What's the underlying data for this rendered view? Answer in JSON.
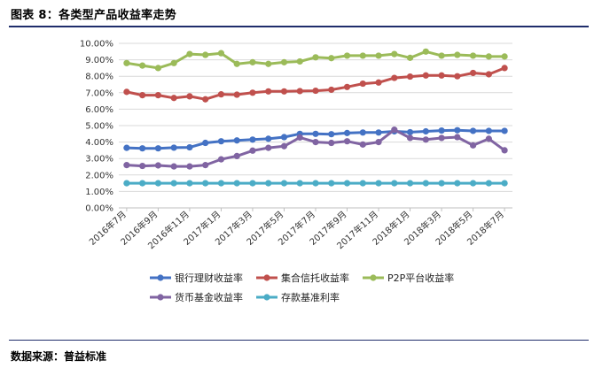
{
  "figure_title": "图表 8：各类型产品收益率走势",
  "source_text": "数据来源：普益标准",
  "chart_data": {
    "type": "line",
    "title": "",
    "xlabel": "",
    "ylabel": "",
    "ylim": [
      0,
      10
    ],
    "y_ticks": [
      "0.00%",
      "1.00%",
      "2.00%",
      "3.00%",
      "4.00%",
      "5.00%",
      "6.00%",
      "7.00%",
      "8.00%",
      "9.00%",
      "10.00%"
    ],
    "x_tick_labels": [
      "2016年7月",
      "2016年9月",
      "2016年11月",
      "2017年1月",
      "2017年3月",
      "2017年5月",
      "2017年7月",
      "2017年9月",
      "2017年11月",
      "2018年1月",
      "2018年3月",
      "2018年5月",
      "2018年7月"
    ],
    "x": [
      "2016-07",
      "2016-08",
      "2016-09",
      "2016-10",
      "2016-11",
      "2016-12",
      "2017-01",
      "2017-02",
      "2017-03",
      "2017-04",
      "2017-05",
      "2017-06",
      "2017-07",
      "2017-08",
      "2017-09",
      "2017-10",
      "2017-11",
      "2017-12",
      "2018-01",
      "2018-02",
      "2018-03",
      "2018-04",
      "2018-05",
      "2018-06",
      "2018-07"
    ],
    "legend_position": "bottom",
    "series": [
      {
        "name": "银行理财收益率",
        "color": "#4472c4",
        "values": [
          3.65,
          3.62,
          3.62,
          3.66,
          3.68,
          3.95,
          4.05,
          4.1,
          4.15,
          4.2,
          4.3,
          4.5,
          4.5,
          4.48,
          4.55,
          4.58,
          4.58,
          4.65,
          4.6,
          4.65,
          4.7,
          4.72,
          4.68,
          4.68,
          4.68
        ]
      },
      {
        "name": "集合信托收益率",
        "color": "#c0504d",
        "values": [
          7.05,
          6.85,
          6.85,
          6.68,
          6.78,
          6.6,
          6.9,
          6.88,
          7.0,
          7.08,
          7.08,
          7.1,
          7.12,
          7.18,
          7.35,
          7.55,
          7.62,
          7.9,
          7.98,
          8.05,
          8.05,
          8.0,
          8.2,
          8.12,
          8.5
        ]
      },
      {
        "name": "P2P平台收益率",
        "color": "#9bbb59",
        "values": [
          8.8,
          8.65,
          8.5,
          8.8,
          9.35,
          9.3,
          9.4,
          8.75,
          8.85,
          8.75,
          8.85,
          8.9,
          9.15,
          9.1,
          9.25,
          9.25,
          9.25,
          9.35,
          9.12,
          9.5,
          9.25,
          9.3,
          9.25,
          9.2,
          9.2
        ]
      },
      {
        "name": "货币基金收益率",
        "color": "#8064a2",
        "values": [
          2.6,
          2.55,
          2.58,
          2.52,
          2.52,
          2.6,
          2.95,
          3.15,
          3.48,
          3.65,
          3.75,
          4.28,
          4.0,
          3.95,
          4.05,
          3.85,
          4.0,
          4.75,
          4.25,
          4.15,
          4.25,
          4.3,
          3.8,
          4.2,
          3.5
        ]
      },
      {
        "name": "存款基准利率",
        "color": "#4bacc6",
        "values": [
          1.5,
          1.5,
          1.5,
          1.5,
          1.5,
          1.5,
          1.5,
          1.5,
          1.5,
          1.5,
          1.5,
          1.5,
          1.5,
          1.5,
          1.5,
          1.5,
          1.5,
          1.5,
          1.5,
          1.5,
          1.5,
          1.5,
          1.5,
          1.5,
          1.5
        ]
      }
    ]
  }
}
